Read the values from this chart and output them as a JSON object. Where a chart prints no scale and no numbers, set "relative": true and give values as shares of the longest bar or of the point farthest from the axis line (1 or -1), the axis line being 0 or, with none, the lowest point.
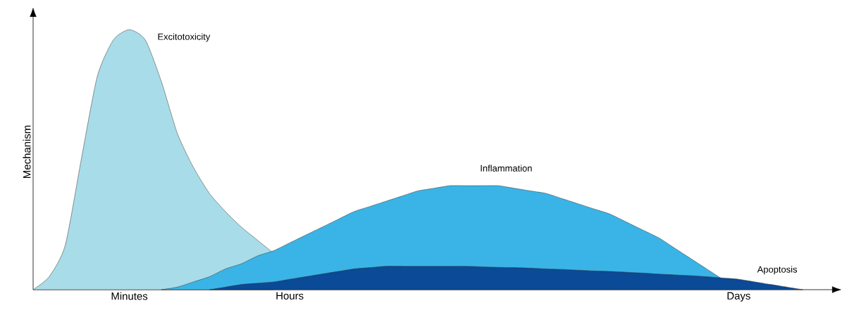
{
  "chart_data": {
    "type": "area",
    "relative": true,
    "ylabel": "Mechanism",
    "categories": [
      null,
      null,
      null,
      null,
      null,
      null,
      "Minutes",
      null,
      null,
      null,
      null,
      null,
      null,
      null,
      null,
      null,
      "Hours",
      null,
      null,
      null,
      null,
      null,
      null,
      null,
      null,
      null,
      null,
      null,
      null,
      null,
      null,
      null,
      null,
      null,
      null,
      null,
      null,
      null,
      null,
      null,
      null,
      null,
      null,
      null,
      "Days",
      null,
      null,
      null,
      null,
      null,
      null
    ],
    "series": [
      {
        "name": "Excitotoxicity",
        "color": "#a8dce8",
        "values": [
          0,
          0.05,
          0.17,
          0.5,
          0.82,
          0.96,
          1,
          0.96,
          0.8,
          0.6,
          0.47,
          0.37,
          0.3,
          0.24,
          0.19,
          0.14,
          null,
          null,
          null,
          null,
          null,
          null,
          null,
          null,
          null,
          null,
          null,
          null,
          null,
          null,
          null,
          null,
          null,
          null,
          null,
          null,
          null,
          null,
          null,
          null,
          null,
          null,
          null,
          null,
          null,
          null,
          null,
          null,
          null,
          null,
          null
        ]
      },
      {
        "name": "Inflammation",
        "color": "#3ab4e6",
        "values": [
          null,
          null,
          null,
          null,
          null,
          null,
          null,
          null,
          0,
          0.01,
          0.03,
          0.05,
          0.08,
          0.1,
          0.13,
          0.15,
          0.18,
          0.21,
          0.24,
          0.27,
          0.3,
          0.32,
          0.34,
          0.36,
          0.38,
          0.39,
          0.4,
          0.4,
          0.4,
          0.4,
          0.39,
          0.38,
          0.37,
          0.35,
          0.33,
          0.31,
          0.29,
          0.26,
          0.23,
          0.2,
          0.16,
          0.12,
          0.08,
          0.04,
          0,
          null,
          null,
          null,
          null,
          null,
          null
        ]
      },
      {
        "name": "Apoptosis",
        "color": "#0a4a96",
        "values": [
          null,
          null,
          null,
          null,
          null,
          null,
          null,
          null,
          null,
          null,
          null,
          0,
          0.01,
          0.02,
          0.025,
          0.03,
          0.04,
          0.05,
          0.06,
          0.07,
          0.08,
          0.085,
          0.09,
          0.09,
          0.09,
          0.09,
          0.09,
          0.09,
          0.088,
          0.086,
          0.085,
          0.083,
          0.08,
          0.078,
          0.075,
          0.072,
          0.07,
          0.067,
          0.064,
          0.06,
          0.057,
          0.054,
          0.05,
          0.045,
          0.04,
          0.03,
          0.02,
          0.01,
          0,
          null,
          null
        ]
      }
    ]
  }
}
